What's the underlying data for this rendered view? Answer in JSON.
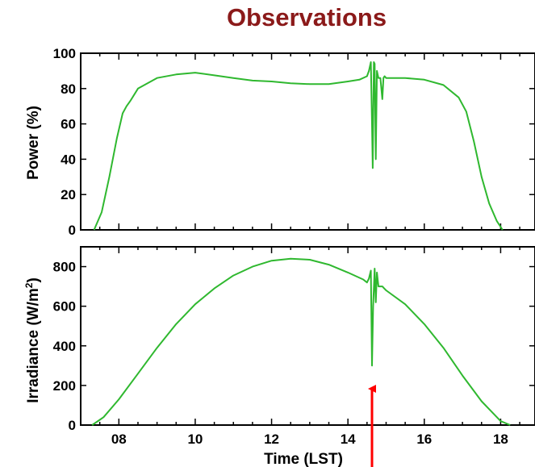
{
  "title": "Observations",
  "colors": {
    "title": "#8b1a1a",
    "series": "#2fb82f",
    "arrow": "#ff0000"
  },
  "chart_data": [
    {
      "type": "line",
      "ylabel": "Power (%)",
      "xlabel": "",
      "xlim": [
        7,
        18.9
      ],
      "ylim": [
        0,
        100
      ],
      "yticks": [
        0,
        20,
        40,
        60,
        80,
        100
      ],
      "xticks": [
        8,
        10,
        12,
        14,
        16,
        18
      ],
      "grid": false,
      "series": [
        {
          "color": "#2fb82f",
          "x": [
            7.35,
            7.55,
            7.75,
            7.95,
            8.1,
            8.2,
            8.3,
            8.5,
            9.0,
            9.5,
            10.0,
            10.5,
            11.0,
            11.5,
            12.0,
            12.5,
            13.0,
            13.5,
            14.0,
            14.3,
            14.5,
            14.55,
            14.6,
            14.63,
            14.65,
            14.68,
            14.7,
            14.73,
            14.76,
            14.8,
            14.85,
            14.9,
            14.93,
            14.96,
            15.0,
            15.5,
            16.0,
            16.5,
            16.9,
            17.1,
            17.3,
            17.5,
            17.7,
            17.9,
            18.05
          ],
          "y": [
            0,
            10,
            30,
            52,
            66,
            70,
            73,
            80,
            86,
            88,
            89,
            87.5,
            86,
            84.5,
            84,
            83,
            82.5,
            82.5,
            84,
            85,
            87,
            90,
            95,
            60,
            35,
            95,
            94,
            40,
            90,
            86,
            86,
            74,
            86,
            87,
            86,
            86,
            85,
            82,
            75,
            67,
            50,
            30,
            15,
            5,
            0
          ]
        }
      ]
    },
    {
      "type": "line",
      "ylabel": "Irradiance (W/m²)",
      "ylabel_main": "Irradiance (W/m",
      "ylabel_sup": "2",
      "ylabel_end": ")",
      "xlabel": "Time (LST)",
      "xlim": [
        7,
        18.9
      ],
      "ylim": [
        0,
        900
      ],
      "yticks": [
        0,
        200,
        400,
        600,
        800
      ],
      "xticks": [
        8,
        10,
        12,
        14,
        16,
        18
      ],
      "xticklabels": [
        "08",
        "10",
        "12",
        "14",
        "16",
        "18"
      ],
      "grid": false,
      "series": [
        {
          "color": "#2fb82f",
          "x": [
            7.3,
            7.6,
            8.0,
            8.5,
            9.0,
            9.5,
            10.0,
            10.5,
            11.0,
            11.5,
            12.0,
            12.5,
            13.0,
            13.5,
            14.0,
            14.4,
            14.5,
            14.55,
            14.6,
            14.63,
            14.66,
            14.7,
            14.73,
            14.76,
            14.8,
            14.85,
            14.9,
            14.95,
            15.0,
            15.5,
            16.0,
            16.5,
            17.0,
            17.5,
            18.0,
            18.25
          ],
          "y": [
            0,
            40,
            130,
            260,
            390,
            510,
            610,
            690,
            755,
            800,
            830,
            840,
            835,
            810,
            770,
            735,
            720,
            740,
            780,
            300,
            600,
            790,
            620,
            770,
            700,
            700,
            700,
            690,
            680,
            610,
            510,
            390,
            250,
            120,
            20,
            0
          ]
        }
      ]
    }
  ]
}
